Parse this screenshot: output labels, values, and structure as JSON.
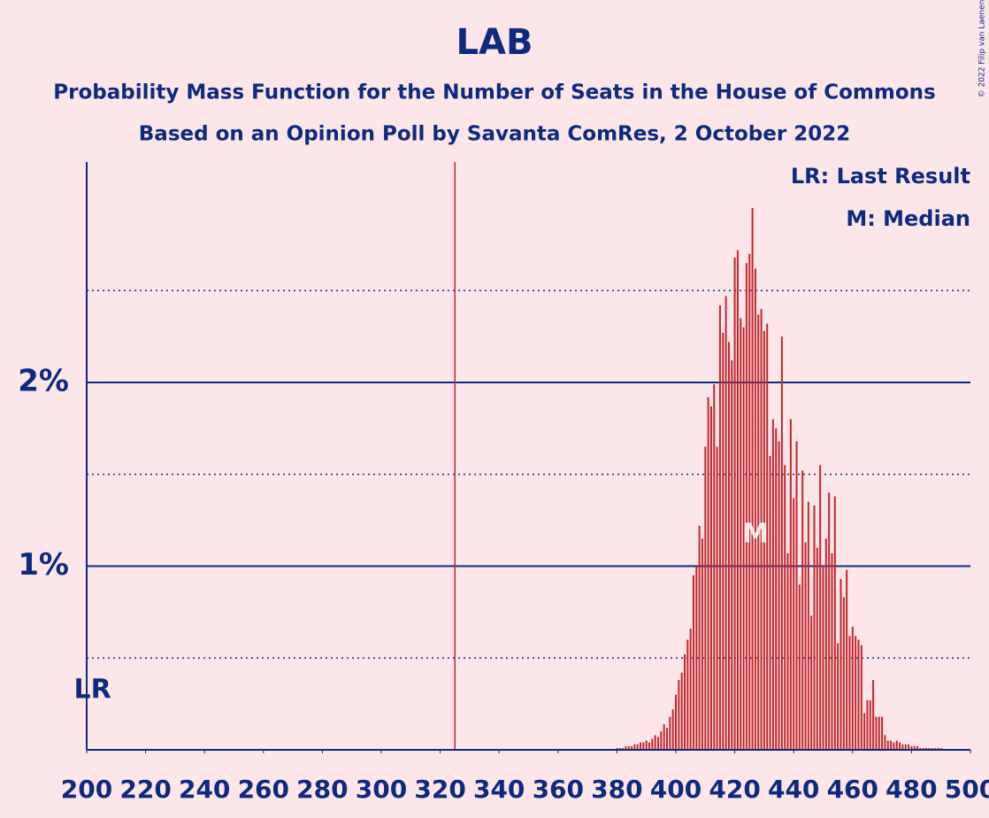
{
  "chart_data": {
    "type": "bar",
    "title": "LAB",
    "subtitle": [
      "Probability Mass Function for the Number of Seats in the House of Commons",
      "Based on an Opinion Poll by Savanta ComRes, 2 October 2022"
    ],
    "x": [
      380,
      381,
      382,
      383,
      384,
      385,
      386,
      387,
      388,
      389,
      390,
      391,
      392,
      393,
      394,
      395,
      396,
      397,
      398,
      399,
      400,
      401,
      402,
      403,
      404,
      405,
      406,
      407,
      408,
      409,
      410,
      411,
      412,
      413,
      414,
      415,
      416,
      417,
      418,
      419,
      420,
      421,
      422,
      423,
      424,
      425,
      426,
      427,
      428,
      429,
      430,
      431,
      432,
      433,
      434,
      435,
      436,
      437,
      438,
      439,
      440,
      441,
      442,
      443,
      444,
      445,
      446,
      447,
      448,
      449,
      450,
      451,
      452,
      453,
      454,
      455,
      456,
      457,
      458,
      459,
      460,
      461,
      462,
      463,
      464,
      465,
      466,
      467,
      468,
      469,
      470,
      471,
      472,
      473,
      474,
      475,
      476,
      477,
      478,
      479,
      480,
      481,
      482,
      483,
      484,
      485,
      486,
      487,
      488,
      489,
      490
    ],
    "values": [
      0.01,
      0.01,
      0.01,
      0.02,
      0.02,
      0.02,
      0.03,
      0.03,
      0.04,
      0.04,
      0.05,
      0.04,
      0.06,
      0.08,
      0.07,
      0.1,
      0.14,
      0.12,
      0.18,
      0.22,
      0.3,
      0.38,
      0.42,
      0.52,
      0.6,
      0.66,
      0.95,
      1.0,
      1.22,
      1.15,
      1.65,
      1.92,
      1.87,
      1.99,
      1.65,
      2.42,
      2.27,
      2.47,
      2.22,
      2.12,
      2.68,
      2.72,
      2.35,
      2.3,
      2.65,
      2.7,
      2.95,
      2.62,
      2.37,
      2.4,
      2.28,
      2.32,
      1.6,
      1.8,
      1.75,
      1.68,
      2.25,
      1.55,
      1.07,
      1.8,
      1.37,
      1.68,
      0.9,
      1.52,
      1.13,
      1.35,
      0.73,
      1.33,
      1.1,
      1.55,
      1.0,
      1.15,
      1.4,
      1.07,
      1.38,
      0.58,
      0.93,
      0.83,
      0.98,
      0.62,
      0.67,
      0.62,
      0.6,
      0.57,
      0.2,
      0.27,
      0.27,
      0.38,
      0.18,
      0.18,
      0.18,
      0.08,
      0.05,
      0.05,
      0.04,
      0.05,
      0.04,
      0.03,
      0.03,
      0.03,
      0.02,
      0.02,
      0.02,
      0.01,
      0.01,
      0.01,
      0.01,
      0.01,
      0.01,
      0.01,
      0.01
    ],
    "color": "#c0272d",
    "xlim": [
      200,
      500
    ],
    "xticks": [
      200,
      220,
      240,
      260,
      280,
      300,
      320,
      340,
      360,
      380,
      400,
      420,
      440,
      460,
      480,
      500
    ],
    "ylim": [
      0,
      3.2
    ],
    "yticks": [
      {
        "value": 1,
        "label": "1%"
      },
      {
        "value": 2,
        "label": "2%"
      }
    ],
    "minor_yticks": [
      0.5,
      1.5,
      2.5
    ],
    "threshold": 325,
    "last_result": {
      "x": 202,
      "label": "LR"
    },
    "median": {
      "x": 427,
      "label": "M"
    },
    "legend": [
      "LR: Last Result",
      "M: Median"
    ],
    "copyright": "© 2022 Filip van Laenen"
  }
}
